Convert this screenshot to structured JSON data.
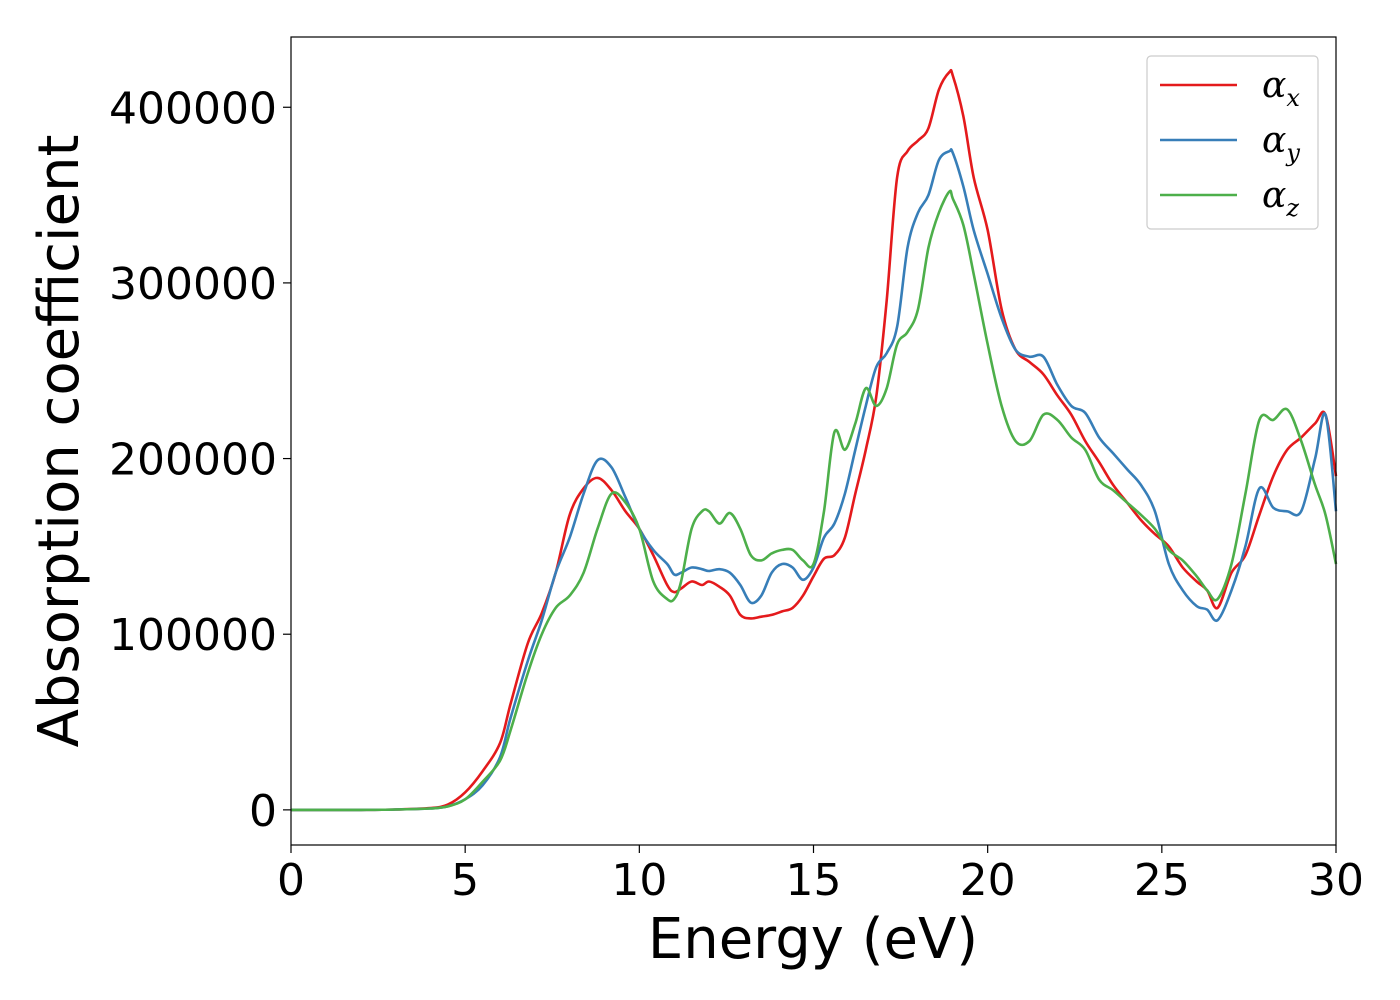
{
  "chart_data": {
    "type": "line",
    "title": "",
    "xlabel": "Energy (eV)",
    "ylabel": "Absorption coefficient",
    "xlim": [
      0,
      30
    ],
    "ylim": [
      -20000,
      440000
    ],
    "xticks": [
      0,
      5,
      10,
      15,
      20,
      25,
      30
    ],
    "yticks": [
      0,
      100000,
      200000,
      300000,
      400000
    ],
    "grid": false,
    "legend": "top-right",
    "series": [
      {
        "name": "α",
        "sub": "x",
        "color": "#e41a1c",
        "x": [
          0,
          2,
          3,
          4,
          4.5,
          5,
          5.5,
          6,
          6.3,
          6.8,
          7.2,
          7.6,
          8.0,
          8.4,
          8.8,
          9.2,
          9.6,
          10.0,
          10.4,
          10.8,
          11.0,
          11.2,
          11.5,
          11.8,
          12.0,
          12.3,
          12.6,
          12.9,
          13.2,
          13.5,
          13.8,
          14.1,
          14.4,
          14.7,
          15.0,
          15.3,
          15.6,
          15.9,
          16.2,
          16.5,
          16.8,
          17.1,
          17.4,
          17.7,
          18.0,
          18.3,
          18.6,
          18.9,
          19.0,
          19.3,
          19.6,
          20.0,
          20.4,
          20.8,
          21.2,
          21.6,
          22.0,
          22.4,
          22.8,
          23.2,
          23.6,
          24.0,
          24.4,
          24.8,
          25.2,
          25.6,
          26.0,
          26.3,
          26.6,
          27.0,
          27.4,
          27.8,
          28.2,
          28.6,
          29.0,
          29.4,
          29.7,
          30.0
        ],
        "y": [
          0,
          0,
          200,
          1000,
          3000,
          10000,
          22000,
          38000,
          60000,
          95000,
          112000,
          135000,
          168000,
          183000,
          189000,
          182000,
          170000,
          160000,
          145000,
          128000,
          124000,
          126000,
          130000,
          128000,
          130000,
          127000,
          122000,
          111000,
          109000,
          110000,
          111000,
          113000,
          115000,
          122000,
          133000,
          143000,
          145000,
          155000,
          180000,
          205000,
          235000,
          290000,
          360000,
          375000,
          381000,
          388000,
          410000,
          420000,
          418000,
          395000,
          360000,
          330000,
          285000,
          262000,
          255000,
          248000,
          236000,
          225000,
          210000,
          198000,
          185000,
          175000,
          165000,
          157000,
          150000,
          138000,
          130000,
          125000,
          115000,
          135000,
          145000,
          168000,
          190000,
          205000,
          212000,
          220000,
          225000,
          190000
        ]
      },
      {
        "name": "α",
        "sub": "y",
        "color": "#377eb8",
        "x": [
          0,
          2,
          3,
          4,
          4.5,
          5,
          5.5,
          6,
          6.3,
          6.8,
          7.2,
          7.6,
          8.0,
          8.4,
          8.8,
          9.2,
          9.6,
          10.0,
          10.4,
          10.8,
          11.0,
          11.2,
          11.5,
          11.8,
          12.0,
          12.3,
          12.6,
          12.9,
          13.2,
          13.5,
          13.8,
          14.1,
          14.4,
          14.7,
          15.0,
          15.3,
          15.6,
          15.9,
          16.2,
          16.5,
          16.8,
          17.1,
          17.4,
          17.7,
          18.0,
          18.3,
          18.6,
          18.9,
          19.0,
          19.3,
          19.6,
          20.0,
          20.4,
          20.8,
          21.2,
          21.6,
          22.0,
          22.4,
          22.8,
          23.2,
          23.6,
          24.0,
          24.4,
          24.8,
          25.2,
          25.6,
          26.0,
          26.3,
          26.6,
          27.0,
          27.4,
          27.8,
          28.2,
          28.6,
          29.0,
          29.4,
          29.7,
          30.0
        ],
        "y": [
          0,
          0,
          200,
          800,
          2000,
          6000,
          14000,
          30000,
          52000,
          85000,
          108000,
          135000,
          155000,
          180000,
          199000,
          195000,
          178000,
          160000,
          148000,
          140000,
          134000,
          135000,
          138000,
          137000,
          136000,
          137000,
          135000,
          128000,
          118000,
          122000,
          135000,
          140000,
          138000,
          131000,
          138000,
          155000,
          163000,
          180000,
          205000,
          230000,
          252000,
          260000,
          275000,
          320000,
          340000,
          350000,
          370000,
          375000,
          374000,
          355000,
          330000,
          305000,
          280000,
          262000,
          258000,
          258000,
          242000,
          230000,
          226000,
          212000,
          203000,
          194000,
          185000,
          170000,
          140000,
          125000,
          116000,
          114000,
          108000,
          125000,
          150000,
          183000,
          172000,
          170000,
          170000,
          200000,
          225000,
          170000
        ]
      },
      {
        "name": "α",
        "sub": "z",
        "color": "#4daf4a",
        "x": [
          0,
          2,
          3,
          4,
          4.5,
          5,
          5.5,
          6,
          6.3,
          6.8,
          7.2,
          7.6,
          8.0,
          8.4,
          8.8,
          9.2,
          9.6,
          10.0,
          10.4,
          10.8,
          11.0,
          11.2,
          11.5,
          11.8,
          12.0,
          12.3,
          12.6,
          12.9,
          13.2,
          13.5,
          13.8,
          14.1,
          14.4,
          14.7,
          15.0,
          15.3,
          15.6,
          15.9,
          16.2,
          16.5,
          16.8,
          17.1,
          17.4,
          17.7,
          18.0,
          18.3,
          18.6,
          18.9,
          19.0,
          19.3,
          19.6,
          20.0,
          20.4,
          20.8,
          21.2,
          21.6,
          22.0,
          22.4,
          22.8,
          23.2,
          23.6,
          24.0,
          24.4,
          24.8,
          25.2,
          25.6,
          26.0,
          26.3,
          26.6,
          27.0,
          27.4,
          27.8,
          28.2,
          28.6,
          29.0,
          29.4,
          29.7,
          30.0
        ],
        "y": [
          0,
          0,
          200,
          800,
          2000,
          6000,
          16000,
          28000,
          45000,
          78000,
          100000,
          115000,
          122000,
          135000,
          160000,
          180000,
          175000,
          160000,
          130000,
          120000,
          120000,
          130000,
          160000,
          170000,
          170000,
          163000,
          169000,
          160000,
          145000,
          142000,
          146000,
          148000,
          148000,
          142000,
          140000,
          170000,
          215000,
          205000,
          220000,
          240000,
          230000,
          240000,
          265000,
          272000,
          285000,
          320000,
          340000,
          352000,
          348000,
          333000,
          305000,
          265000,
          230000,
          210000,
          210000,
          225000,
          222000,
          212000,
          205000,
          188000,
          182000,
          175000,
          168000,
          160000,
          148000,
          142000,
          133000,
          125000,
          120000,
          140000,
          180000,
          222000,
          222000,
          228000,
          210000,
          185000,
          168000,
          140000
        ]
      }
    ]
  }
}
